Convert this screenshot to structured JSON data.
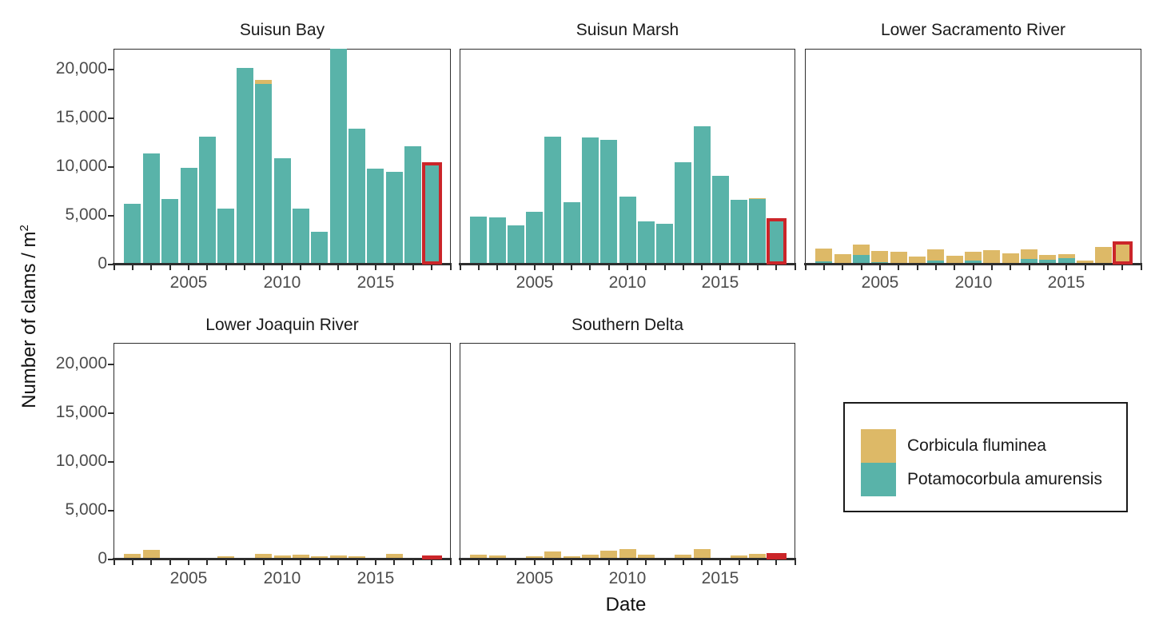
{
  "figure": {
    "ylabel_main": "Number of clams / m",
    "ylabel_sup": "2",
    "xlabel": "Date"
  },
  "colors": {
    "corbicula": "#DDB967",
    "potamocorbula": "#59B3A9",
    "highlight": "#CB2529",
    "axis_text": "#4d4d4d",
    "axis_line": "#2e2e2e",
    "title_text": "#1a1a1a"
  },
  "legend": {
    "items": [
      {
        "label": "Corbicula fluminea",
        "color": "#DDB967"
      },
      {
        "label": "Potamocorbula amurensis",
        "color": "#59B3A9"
      }
    ]
  },
  "chart_data": {
    "type": "bar",
    "stacked": true,
    "x": [
      2002,
      2003,
      2004,
      2005,
      2006,
      2007,
      2008,
      2009,
      2010,
      2011,
      2012,
      2013,
      2014,
      2015,
      2016,
      2017,
      2018
    ],
    "x_axis_ticks": [
      2001,
      2002,
      2003,
      2004,
      2005,
      2006,
      2007,
      2008,
      2009,
      2010,
      2011,
      2012,
      2013,
      2014,
      2015,
      2016,
      2017,
      2018,
      2019
    ],
    "x_tick_labels": [
      "2005",
      "2010",
      "2015"
    ],
    "x_tick_label_years": [
      2005,
      2010,
      2015
    ],
    "y_tick_values": [
      0,
      5000,
      10000,
      15000,
      20000
    ],
    "y_tick_labels": [
      "0",
      "5,000",
      "10,000",
      "15,000",
      "20,000"
    ],
    "ylim": [
      0,
      22100
    ],
    "xlabel": "Date",
    "ylabel": "Number of clams / m2",
    "legend_position": "bottom-right-facet-space",
    "grid": false,
    "series_order_bottom_to_top": [
      "potamocorbula",
      "corbicula"
    ],
    "highlight_year": 2018,
    "panels": [
      {
        "title": "Suisun Bay",
        "potamocorbula": [
          6200,
          11400,
          6700,
          9900,
          13100,
          5700,
          20200,
          18500,
          10900,
          5700,
          3400,
          22200,
          13900,
          9800,
          9500,
          12100,
          10300
        ],
        "corbicula": [
          0,
          0,
          0,
          0,
          0,
          0,
          0,
          400,
          0,
          0,
          0,
          0,
          0,
          0,
          0,
          0,
          0
        ]
      },
      {
        "title": "Suisun Marsh",
        "potamocorbula": [
          4900,
          4800,
          4000,
          5400,
          13100,
          6400,
          13000,
          12800,
          7000,
          4400,
          4200,
          10500,
          14200,
          9100,
          6600,
          6700,
          4600
        ],
        "corbicula": [
          0,
          0,
          0,
          0,
          0,
          0,
          0,
          0,
          0,
          0,
          0,
          0,
          0,
          0,
          0,
          100,
          0
        ]
      },
      {
        "title": "Lower Sacramento River",
        "potamocorbula": [
          300,
          150,
          1000,
          250,
          100,
          50,
          400,
          200,
          400,
          200,
          150,
          600,
          500,
          650,
          50,
          50,
          50
        ],
        "corbicula": [
          1300,
          900,
          1100,
          1150,
          1250,
          700,
          1150,
          750,
          870,
          1300,
          1000,
          950,
          500,
          400,
          330,
          1750,
          2150
        ]
      },
      {
        "title": "Lower Joaquin River",
        "potamocorbula": [
          0,
          0,
          0,
          0,
          0,
          0,
          0,
          0,
          0,
          0,
          0,
          0,
          0,
          0,
          0,
          0,
          0
        ],
        "corbicula": [
          600,
          950,
          0,
          0,
          0,
          300,
          0,
          600,
          400,
          500,
          330,
          430,
          330,
          0,
          600,
          0,
          250
        ]
      },
      {
        "title": "Southern Delta",
        "potamocorbula": [
          0,
          0,
          0,
          0,
          0,
          0,
          0,
          0,
          0,
          0,
          0,
          0,
          0,
          0,
          0,
          0,
          0
        ],
        "corbicula": [
          490,
          400,
          160,
          300,
          860,
          320,
          490,
          920,
          1080,
          490,
          0,
          460,
          1030,
          0,
          380,
          540,
          490
        ]
      }
    ]
  }
}
